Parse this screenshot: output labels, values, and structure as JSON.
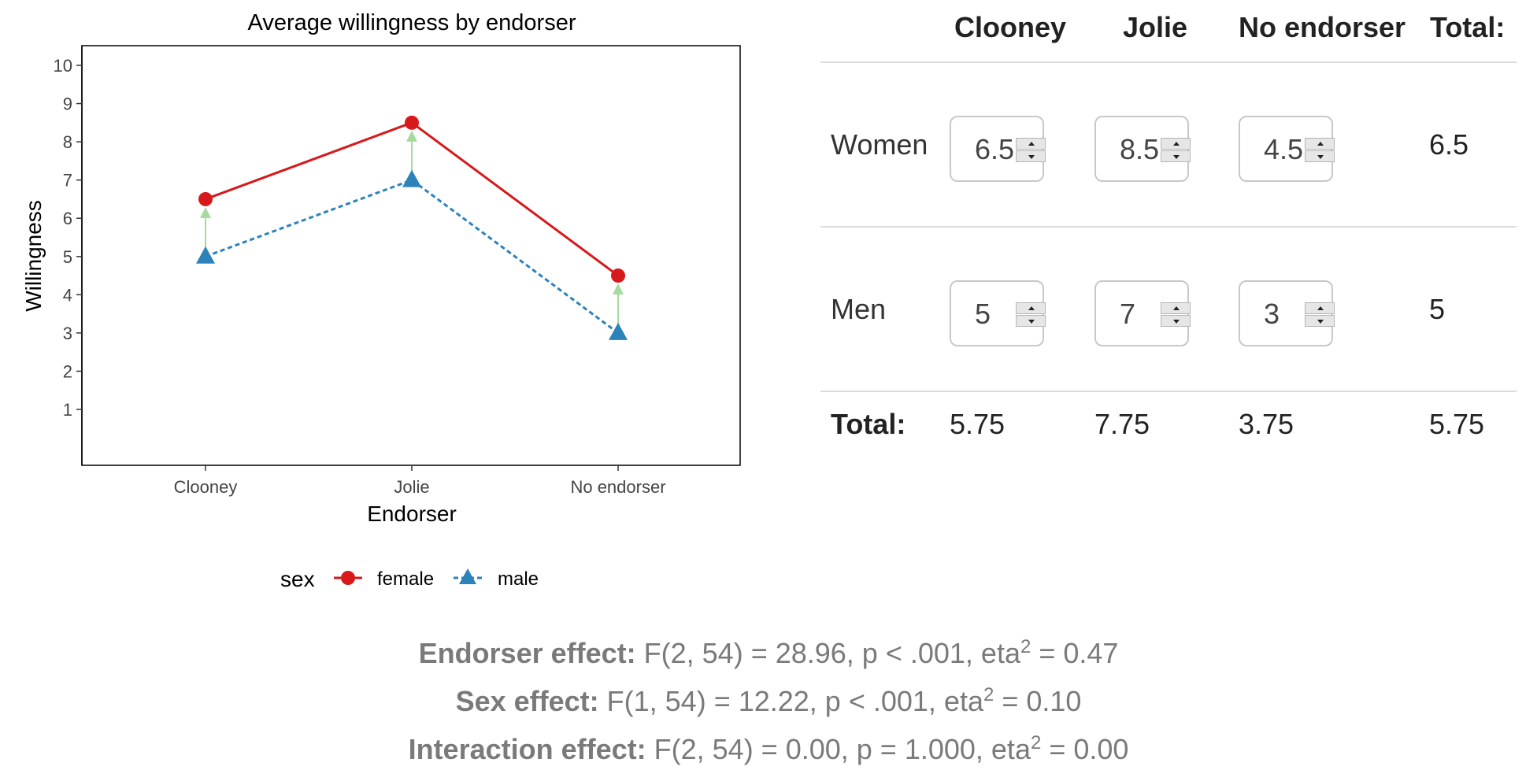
{
  "chart_data": {
    "type": "line",
    "title": "Average willingness by endorser",
    "xlabel": "Endorser",
    "ylabel": "Willingness",
    "categories": [
      "Clooney",
      "Jolie",
      "No endorser"
    ],
    "ylim": [
      0,
      10
    ],
    "yticks": [
      "1",
      "2",
      "3",
      "4",
      "5",
      "6",
      "7",
      "8",
      "9",
      "10"
    ],
    "grid": false,
    "legend": {
      "title": "sex",
      "position": "bottom"
    },
    "series": [
      {
        "name": "female",
        "values": [
          6.5,
          8.5,
          4.5
        ],
        "color": "#d7191c",
        "marker": "circle",
        "line": "solid"
      },
      {
        "name": "male",
        "values": [
          5,
          7,
          3
        ],
        "color": "#2b83ba",
        "marker": "triangle",
        "line": "dashed"
      }
    ],
    "difference_arrows_color": "#a6dba0"
  },
  "table": {
    "headers": [
      "Clooney",
      "Jolie",
      "No endorser",
      "Total:"
    ],
    "rows": [
      {
        "label": "Women",
        "inputs": [
          "6.5",
          "8.5",
          "4.5"
        ],
        "total": "6.5"
      },
      {
        "label": "Men",
        "inputs": [
          "5",
          "7",
          "3"
        ],
        "total": "5"
      }
    ],
    "totals_row": {
      "label": "Total:",
      "values": [
        "5.75",
        "7.75",
        "3.75",
        "5.75"
      ]
    }
  },
  "stats": {
    "endorser": {
      "label": "Endorser effect:",
      "text": "F(2, 54) = 28.96, p < .001, eta",
      "sup": "2",
      "tail": " = 0.47"
    },
    "sex": {
      "label": "Sex effect:",
      "text": "F(1, 54) = 12.22, p < .001, eta",
      "sup": "2",
      "tail": " = 0.10"
    },
    "interaction": {
      "label": "Interaction effect:",
      "text": "F(2, 54) = 0.00, p = 1.000, eta",
      "sup": "2",
      "tail": " = 0.00"
    }
  }
}
